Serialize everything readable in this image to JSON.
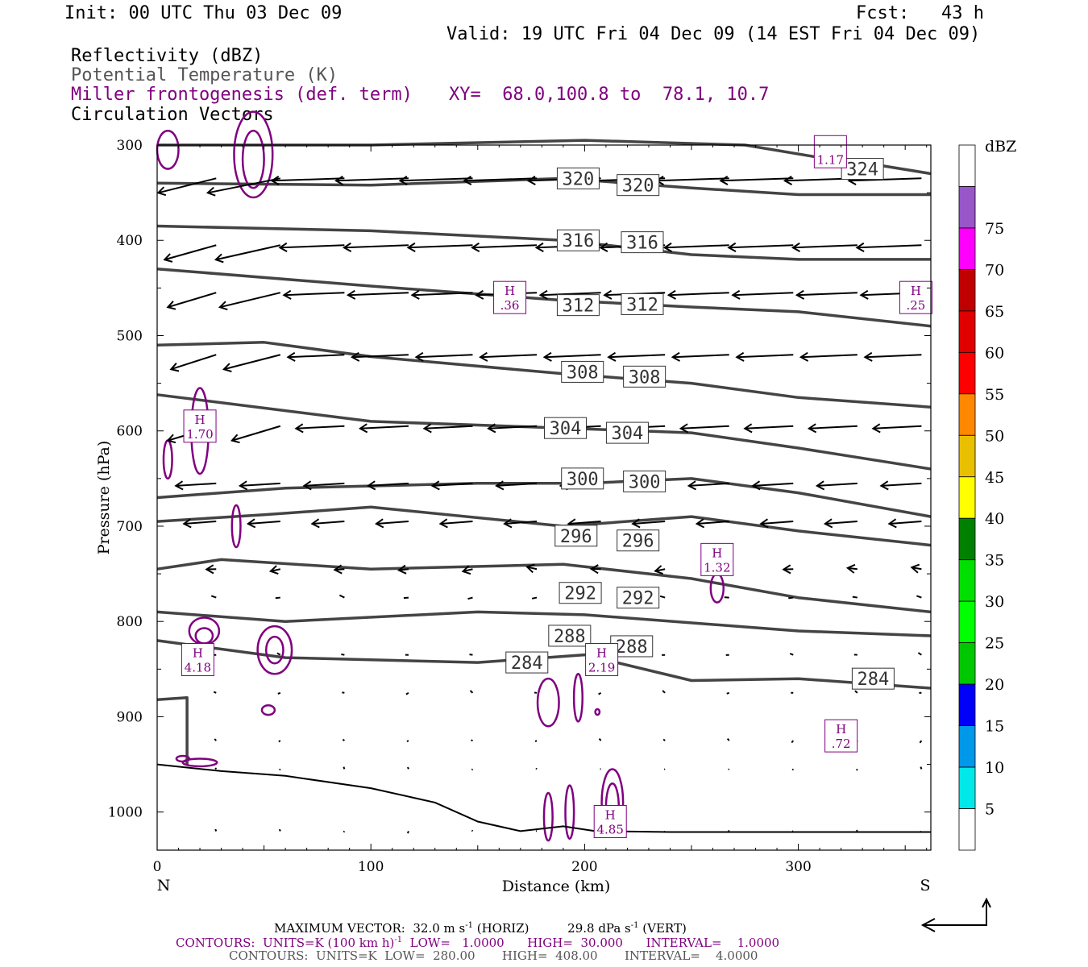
{
  "header": {
    "init": "Init: 00 UTC Thu 03 Dec 09",
    "fcst": "Fcst:   43 h",
    "valid": "Valid: 19 UTC Fri 04 Dec 09 (14 EST Fri 04 Dec 09)",
    "legend_reflectivity": "Reflectivity (dBZ)",
    "legend_theta": "Potential Temperature (K)",
    "legend_frontogenesis": "Miller frontogenesis (def. term)",
    "legend_xy": "XY=  68.0,100.8 to  78.1, 10.7",
    "legend_vectors": "Circulation Vectors"
  },
  "colors": {
    "theta": "#444444",
    "frontogenesis": "#800080",
    "vectors": "#000000",
    "terrain": "#000000"
  },
  "footer": {
    "max_vector_a": "MAXIMUM VECTOR:  32.0 m s",
    "max_vector_exp": "-1",
    "max_vector_b": " (HORIZ)          29.8 dPa s",
    "max_vector_exp2": "-1",
    "max_vector_c": " (VERT)",
    "contours1_a": "CONTOURS:  UNITS=K (100 km h)",
    "contours1_exp": "-1",
    "contours1_b": "  LOW=   1.0000      HIGH=  30.000      INTERVAL=    1.0000",
    "contours2": "CONTOURS:  UNITS=K  LOW=  280.00       HIGH=  408.00       INTERVAL=    4.0000"
  },
  "chart_data": {
    "type": "cross-section",
    "xlabel": "Distance (km)",
    "ylabel": "Pressure (hPa)",
    "xlim": [
      0,
      362
    ],
    "ylim": [
      300,
      1040
    ],
    "xticks": [
      0,
      100,
      200,
      300
    ],
    "yticks": [
      300,
      400,
      500,
      600,
      700,
      800,
      900,
      1000
    ],
    "x_left_label": "N",
    "x_right_label": "S",
    "colorbar": {
      "unit": "dBZ",
      "levels": [
        "5",
        "10",
        "15",
        "20",
        "25",
        "30",
        "35",
        "40",
        "45",
        "50",
        "55",
        "60",
        "65",
        "70",
        "75"
      ],
      "colors": [
        "#ffffff",
        "#00e8e8",
        "#0098e8",
        "#0000f8",
        "#00c800",
        "#00ff00",
        "#00e000",
        "#008000",
        "#ffff00",
        "#e8c000",
        "#ff8800",
        "#ff0000",
        "#e00000",
        "#c00000",
        "#ff00ff",
        "#9856c8",
        "#ffffff"
      ]
    },
    "theta_lines": [
      {
        "label": "324",
        "points": [
          [
            0,
            300
          ],
          [
            100,
            300
          ],
          [
            200,
            295
          ],
          [
            275,
            300
          ],
          [
            315,
            315
          ],
          [
            340,
            322
          ],
          [
            362,
            330
          ]
        ],
        "labels_at": [
          [
            330,
            325
          ]
        ]
      },
      {
        "label": "320",
        "points": [
          [
            0,
            340
          ],
          [
            100,
            342
          ],
          [
            190,
            335
          ],
          [
            250,
            345
          ],
          [
            300,
            352
          ],
          [
            362,
            352
          ]
        ],
        "labels_at": [
          [
            197,
            335
          ],
          [
            225,
            342
          ]
        ]
      },
      {
        "label": "316",
        "points": [
          [
            0,
            385
          ],
          [
            100,
            390
          ],
          [
            190,
            400
          ],
          [
            250,
            415
          ],
          [
            300,
            420
          ],
          [
            362,
            420
          ]
        ],
        "labels_at": [
          [
            197,
            400
          ],
          [
            227,
            402
          ]
        ]
      },
      {
        "label": "312",
        "points": [
          [
            0,
            430
          ],
          [
            100,
            448
          ],
          [
            190,
            463
          ],
          [
            250,
            470
          ],
          [
            300,
            475
          ],
          [
            362,
            490
          ]
        ],
        "labels_at": [
          [
            197,
            468
          ],
          [
            227,
            467
          ]
        ]
      },
      {
        "label": "308",
        "points": [
          [
            0,
            510
          ],
          [
            50,
            507
          ],
          [
            100,
            522
          ],
          [
            190,
            540
          ],
          [
            250,
            550
          ],
          [
            300,
            565
          ],
          [
            362,
            575
          ]
        ],
        "labels_at": [
          [
            199,
            538
          ],
          [
            228,
            543
          ]
        ]
      },
      {
        "label": "304",
        "points": [
          [
            0,
            562
          ],
          [
            100,
            590
          ],
          [
            190,
            597
          ],
          [
            250,
            602
          ],
          [
            300,
            618
          ],
          [
            362,
            640
          ]
        ],
        "labels_at": [
          [
            191,
            597
          ],
          [
            220,
            602
          ]
        ]
      },
      {
        "label": "300",
        "points": [
          [
            0,
            670
          ],
          [
            60,
            660
          ],
          [
            150,
            655
          ],
          [
            200,
            655
          ],
          [
            250,
            650
          ],
          [
            300,
            665
          ],
          [
            362,
            690
          ]
        ],
        "labels_at": [
          [
            199,
            650
          ],
          [
            228,
            653
          ]
        ]
      },
      {
        "label": "296",
        "points": [
          [
            0,
            695
          ],
          [
            50,
            688
          ],
          [
            100,
            680
          ],
          [
            190,
            700
          ],
          [
            250,
            690
          ],
          [
            300,
            705
          ],
          [
            362,
            720
          ]
        ],
        "labels_at": [
          [
            196,
            710
          ],
          [
            225,
            715
          ]
        ]
      },
      {
        "label": "292",
        "points": [
          [
            0,
            745
          ],
          [
            30,
            735
          ],
          [
            100,
            745
          ],
          [
            190,
            740
          ],
          [
            250,
            755
          ],
          [
            300,
            775
          ],
          [
            362,
            790
          ]
        ],
        "labels_at": [
          [
            198,
            770
          ],
          [
            225,
            775
          ]
        ]
      },
      {
        "label": "288",
        "points": [
          [
            0,
            790
          ],
          [
            60,
            800
          ],
          [
            150,
            790
          ],
          [
            200,
            793
          ],
          [
            300,
            810
          ],
          [
            362,
            815
          ]
        ],
        "labels_at": [
          [
            193,
            815
          ],
          [
            222,
            826
          ]
        ]
      },
      {
        "label": "284",
        "points": [
          [
            0,
            820
          ],
          [
            60,
            838
          ],
          [
            150,
            843
          ],
          [
            200,
            835
          ],
          [
            250,
            862
          ],
          [
            300,
            860
          ],
          [
            362,
            870
          ]
        ],
        "labels_at": [
          [
            173,
            843
          ],
          [
            335,
            860
          ]
        ]
      },
      {
        "label": "",
        "points": [
          [
            0,
            882
          ],
          [
            14,
            880
          ],
          [
            14,
            950
          ]
        ],
        "labels_at": []
      }
    ],
    "front_labels": [
      {
        "H": "H",
        "value": "1.70",
        "x": 20,
        "p": 595
      },
      {
        "H": "H",
        "value": ".36",
        "x": 165,
        "p": 460
      },
      {
        "H": "H",
        "value": ".25",
        "x": 355,
        "p": 460
      },
      {
        "H": "",
        "value": "1.17",
        "x": 315,
        "p": 307
      },
      {
        "H": "H",
        "value": "1.32",
        "x": 262,
        "p": 735
      },
      {
        "H": "H",
        "value": "4.18",
        "x": 19,
        "p": 840
      },
      {
        "H": "H",
        "value": "2.19",
        "x": 208,
        "p": 840
      },
      {
        "H": "H",
        "value": ".72",
        "x": 320,
        "p": 920
      },
      {
        "H": "H",
        "value": "4.85",
        "x": 212,
        "p": 1010
      }
    ],
    "terrain_pressure": [
      [
        0,
        950
      ],
      [
        30,
        957
      ],
      [
        60,
        962
      ],
      [
        100,
        975
      ],
      [
        130,
        990
      ],
      [
        150,
        1010
      ],
      [
        170,
        1020
      ],
      [
        190,
        1015
      ],
      [
        205,
        1020
      ],
      [
        240,
        1021
      ],
      [
        362,
        1021
      ]
    ]
  }
}
